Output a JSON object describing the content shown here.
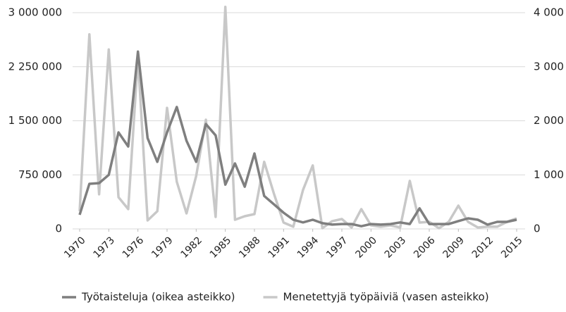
{
  "chart_data": {
    "type": "line",
    "x": [
      1970,
      1971,
      1972,
      1973,
      1974,
      1975,
      1976,
      1977,
      1978,
      1979,
      1980,
      1981,
      1982,
      1983,
      1984,
      1985,
      1986,
      1987,
      1988,
      1989,
      1990,
      1991,
      1992,
      1993,
      1994,
      1995,
      1996,
      1997,
      1998,
      1999,
      2000,
      2001,
      2002,
      2003,
      2004,
      2005,
      2006,
      2007,
      2008,
      2009,
      2010,
      2011,
      2012,
      2013,
      2014,
      2015
    ],
    "xlim": [
      1970,
      2015
    ],
    "xticks": [
      1970,
      1973,
      1976,
      1979,
      1982,
      1985,
      1988,
      1991,
      1994,
      1997,
      2000,
      2003,
      2006,
      2009,
      2012,
      2015
    ],
    "ylim": [
      0,
      3000000
    ],
    "yticks": [
      0,
      {
        "value": 750000,
        "label": "750 000"
      },
      {
        "value": 1500000,
        "label": "1 500 000"
      },
      {
        "value": 2250000,
        "label": "2 250 000"
      },
      {
        "value": 3000000,
        "label": "3 000 000"
      }
    ],
    "y2lim": [
      0,
      4000
    ],
    "y2ticks": [
      0,
      {
        "value": 1000,
        "label": "1 000"
      },
      {
        "value": 2000,
        "label": "2 000"
      },
      {
        "value": 3000,
        "label": "3 000"
      },
      {
        "value": 4000,
        "label": "4 000"
      }
    ],
    "grid": true,
    "legend": "bottom",
    "series": [
      {
        "name": "Työtaisteluja (oikea asteikko)",
        "color": "#7f7f7f",
        "axis": "y2",
        "values": [
          260,
          834,
          847,
          1000,
          1785,
          1525,
          3280,
          1680,
          1240,
          1785,
          2255,
          1630,
          1240,
          1940,
          1730,
          820,
          1210,
          780,
          1395,
          610,
          455,
          300,
          170,
          120,
          170,
          105,
          80,
          90,
          90,
          50,
          90,
          80,
          90,
          120,
          90,
          380,
          90,
          90,
          90,
          145,
          195,
          170,
          80,
          130,
          130,
          170
        ]
      },
      {
        "name": "Menetettyjä työpäiviä (vasen asteikko)",
        "color": "#c8c8c8",
        "values": [
          245000,
          2700000,
          480000,
          2490000,
          440000,
          275000,
          2375000,
          117000,
          245000,
          1680000,
          655000,
          215000,
          733000,
          1515000,
          166000,
          3080000,
          127000,
          176000,
          205000,
          930000,
          490000,
          88000,
          30000,
          540000,
          880000,
          10000,
          107000,
          137000,
          20000,
          275000,
          49000,
          30000,
          49000,
          20000,
          665000,
          88000,
          98000,
          10000,
          98000,
          322000,
          98000,
          20000,
          30000,
          30000,
          98000,
          147000
        ]
      }
    ]
  }
}
